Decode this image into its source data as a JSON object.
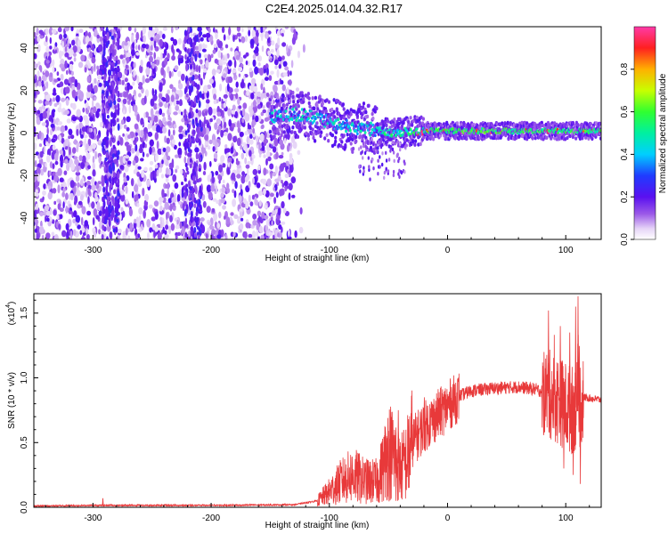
{
  "title": "C2E4.2025.014.04.32.R17",
  "colors": {
    "snr_line": "#e8393a",
    "spectrogram_low": "#e6d5f7",
    "spectrogram_mid": "#7a1ee0",
    "frame": "#000000"
  },
  "chart_data": [
    {
      "type": "heatmap",
      "name": "spectrogram",
      "xlabel": "Height of straight line (km)",
      "ylabel": "Frequency (Hz)",
      "xlim": [
        -350,
        130
      ],
      "ylim": [
        -50,
        50
      ],
      "xticks": [
        -300,
        -200,
        -100,
        0,
        100
      ],
      "yticks": [
        -40,
        -20,
        0,
        20,
        40
      ],
      "colorbar": {
        "label": "Normalized spectral amplitude",
        "range": [
          0,
          1
        ],
        "ticks": [
          "0.0",
          "0.2",
          "0.4",
          "0.6",
          "0.8"
        ],
        "tick_values": [
          0,
          0.2,
          0.4,
          0.6,
          0.8
        ]
      },
      "ridge": [
        [
          -145,
          8
        ],
        [
          -130,
          9
        ],
        [
          -120,
          8
        ],
        [
          -110,
          7
        ],
        [
          -100,
          5
        ],
        [
          -90,
          4
        ],
        [
          -80,
          2
        ],
        [
          -70,
          3
        ],
        [
          -60,
          1
        ],
        [
          -50,
          0
        ],
        [
          -40,
          0
        ],
        [
          -30,
          1
        ],
        [
          -20,
          1
        ],
        [
          -10,
          1
        ],
        [
          0,
          1
        ],
        [
          20,
          1
        ],
        [
          40,
          1
        ],
        [
          60,
          1
        ],
        [
          80,
          1
        ],
        [
          100,
          1
        ],
        [
          120,
          1
        ]
      ],
      "grid": false
    },
    {
      "type": "line",
      "name": "snr",
      "xlabel": "Height of straight line (km)",
      "ylabel": "SNR (10 * v/v)",
      "yscale_label": "(x10",
      "yscale_exp": "4",
      "yscale_close": ")",
      "xlim": [
        -350,
        130
      ],
      "ylim": [
        0,
        1.65
      ],
      "xticks": [
        -300,
        -200,
        -100,
        0,
        100
      ],
      "yticks": [
        "0.0",
        "0.5",
        "1.0",
        "1.5"
      ],
      "ytick_values": [
        0,
        0.5,
        1.0,
        1.5
      ],
      "envelope": [
        [
          -350,
          0.01
        ],
        [
          -300,
          0.015
        ],
        [
          -200,
          0.015
        ],
        [
          -130,
          0.02
        ],
        [
          -110,
          0.05
        ],
        [
          -100,
          0.12
        ],
        [
          -90,
          0.2
        ],
        [
          -80,
          0.25
        ],
        [
          -70,
          0.2
        ],
        [
          -60,
          0.2
        ],
        [
          -55,
          0.3
        ],
        [
          -50,
          0.45
        ],
        [
          -45,
          0.4
        ],
        [
          -40,
          0.3
        ],
        [
          -35,
          0.35
        ],
        [
          -30,
          0.5
        ],
        [
          -20,
          0.62
        ],
        [
          -10,
          0.7
        ],
        [
          0,
          0.78
        ],
        [
          10,
          0.86
        ],
        [
          20,
          0.9
        ],
        [
          40,
          0.92
        ],
        [
          60,
          0.93
        ],
        [
          75,
          0.91
        ],
        [
          85,
          0.88
        ],
        [
          95,
          0.82
        ],
        [
          105,
          0.75
        ],
        [
          112,
          0.8
        ],
        [
          115,
          0.85
        ],
        [
          130,
          0.83
        ]
      ],
      "spikes": [
        [
          -292,
          0.07
        ],
        [
          85,
          1.52
        ],
        [
          95,
          1.4
        ],
        [
          103,
          1.35
        ],
        [
          108,
          1.55
        ],
        [
          110,
          1.63
        ],
        [
          112,
          0.18
        ],
        [
          106,
          0.25
        ],
        [
          98,
          0.3
        ],
        [
          -42,
          0.75
        ],
        [
          -44,
          0.05
        ],
        [
          -27,
          0.7
        ],
        [
          -20,
          0.85
        ]
      ],
      "grid": false
    }
  ]
}
